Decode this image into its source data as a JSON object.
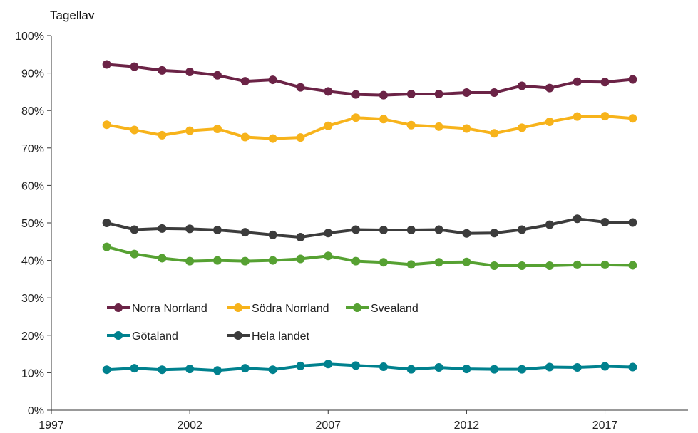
{
  "chart_data": {
    "type": "line",
    "ylabel": "Tagellav",
    "x": [
      1999,
      2000,
      2001,
      2002,
      2003,
      2004,
      2005,
      2006,
      2007,
      2008,
      2009,
      2010,
      2011,
      2012,
      2013,
      2014,
      2015,
      2016,
      2017,
      2018
    ],
    "xlim": [
      1997,
      2020
    ],
    "ylim": [
      0,
      100
    ],
    "x_ticks": [
      1997,
      2002,
      2007,
      2012,
      2017
    ],
    "x_tick_labels": [
      "1997",
      "2002",
      "2007",
      "2012",
      "2017"
    ],
    "y_ticks": [
      0,
      10,
      20,
      30,
      40,
      50,
      60,
      70,
      80,
      90,
      100
    ],
    "y_tick_labels": [
      "0%",
      "10%",
      "20%",
      "30%",
      "40%",
      "50%",
      "60%",
      "70%",
      "80%",
      "90%",
      "100%"
    ],
    "grid": false,
    "legend_position": "lower-left inside",
    "series": [
      {
        "name": "Norra Norrland",
        "color": "#6b2346",
        "values": [
          92.3,
          91.7,
          90.7,
          90.3,
          89.4,
          87.8,
          88.2,
          86.2,
          85.1,
          84.3,
          84.1,
          84.4,
          84.4,
          84.8,
          84.8,
          86.6,
          86.0,
          87.7,
          87.6,
          88.3
        ]
      },
      {
        "name": "Södra Norrland",
        "color": "#f7b31b",
        "values": [
          76.2,
          74.8,
          73.4,
          74.6,
          75.1,
          72.9,
          72.5,
          72.8,
          75.9,
          78.1,
          77.7,
          76.1,
          75.7,
          75.2,
          73.9,
          75.4,
          77.0,
          78.4,
          78.5,
          77.9
        ]
      },
      {
        "name": "Svealand",
        "color": "#56a132",
        "values": [
          43.6,
          41.7,
          40.6,
          39.8,
          40.0,
          39.8,
          40.0,
          40.4,
          41.2,
          39.8,
          39.5,
          38.9,
          39.5,
          39.6,
          38.6,
          38.6,
          38.6,
          38.8,
          38.8,
          38.7
        ]
      },
      {
        "name": "Götaland",
        "color": "#00818e",
        "values": [
          10.8,
          11.2,
          10.8,
          11.0,
          10.6,
          11.2,
          10.8,
          11.8,
          12.3,
          11.9,
          11.6,
          10.9,
          11.4,
          11.0,
          10.9,
          10.9,
          11.5,
          11.4,
          11.7,
          11.5
        ]
      },
      {
        "name": "Hela landet",
        "color": "#3c3c3c",
        "values": [
          50.0,
          48.2,
          48.5,
          48.4,
          48.1,
          47.5,
          46.8,
          46.2,
          47.3,
          48.2,
          48.1,
          48.1,
          48.2,
          47.2,
          47.3,
          48.2,
          49.5,
          51.1,
          50.2,
          50.1
        ]
      }
    ],
    "legend_rows": [
      [
        "Norra Norrland",
        "Södra Norrland",
        "Svealand"
      ],
      [
        "Götaland",
        "Hela landet"
      ]
    ]
  }
}
